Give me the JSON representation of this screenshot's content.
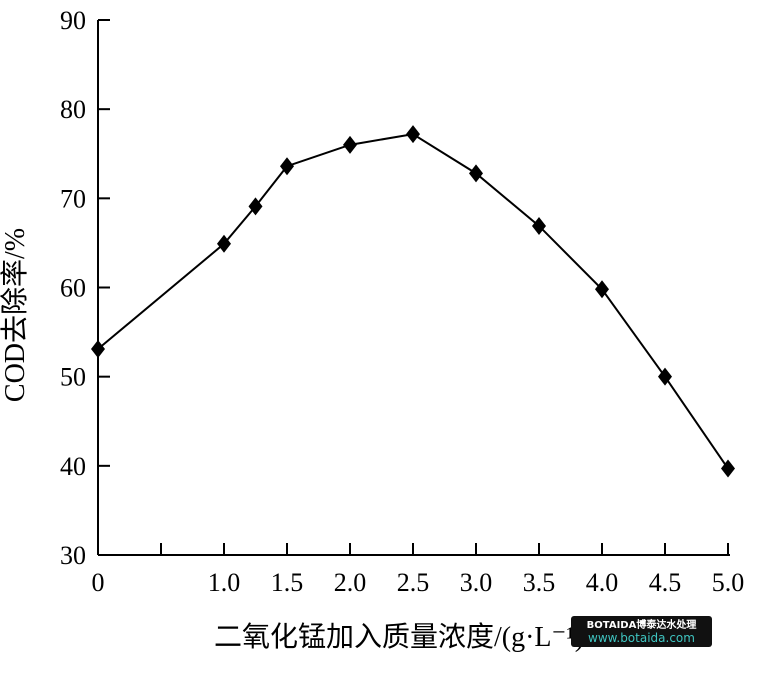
{
  "chart_data": {
    "type": "line",
    "title": "",
    "xlabel": "二氧化锰加入质量浓度/(g·L⁻¹)",
    "ylabel": "COD去除率/%",
    "xlim": [
      0,
      5.0
    ],
    "ylim": [
      30,
      90
    ],
    "x_ticks": [
      "0",
      "1.0",
      "1.5",
      "2.0",
      "2.5",
      "3.0",
      "3.5",
      "4.0",
      "4.5",
      "5.0"
    ],
    "x_tick_values": [
      0,
      1.0,
      1.5,
      2.0,
      2.5,
      3.0,
      3.5,
      4.0,
      4.5,
      5.0
    ],
    "x_minor_ticks": [
      0.5
    ],
    "y_ticks": [
      "30",
      "40",
      "50",
      "60",
      "70",
      "80",
      "90"
    ],
    "y_tick_values": [
      30,
      40,
      50,
      60,
      70,
      80,
      90
    ],
    "grid": false,
    "marker": "diamond",
    "series": [
      {
        "x": [
          0,
          1.0,
          1.25,
          1.5,
          2.0,
          2.5,
          3.0,
          3.5,
          4.0,
          4.5,
          5.0
        ],
        "y": [
          53.1,
          64.9,
          69.1,
          73.6,
          76.0,
          77.2,
          72.8,
          66.9,
          59.8,
          50.0,
          39.7
        ],
        "color": "#000000"
      }
    ]
  },
  "watermark": {
    "line1": "BOTAIDA博泰达水处理",
    "line2": "www.botaida.com"
  }
}
